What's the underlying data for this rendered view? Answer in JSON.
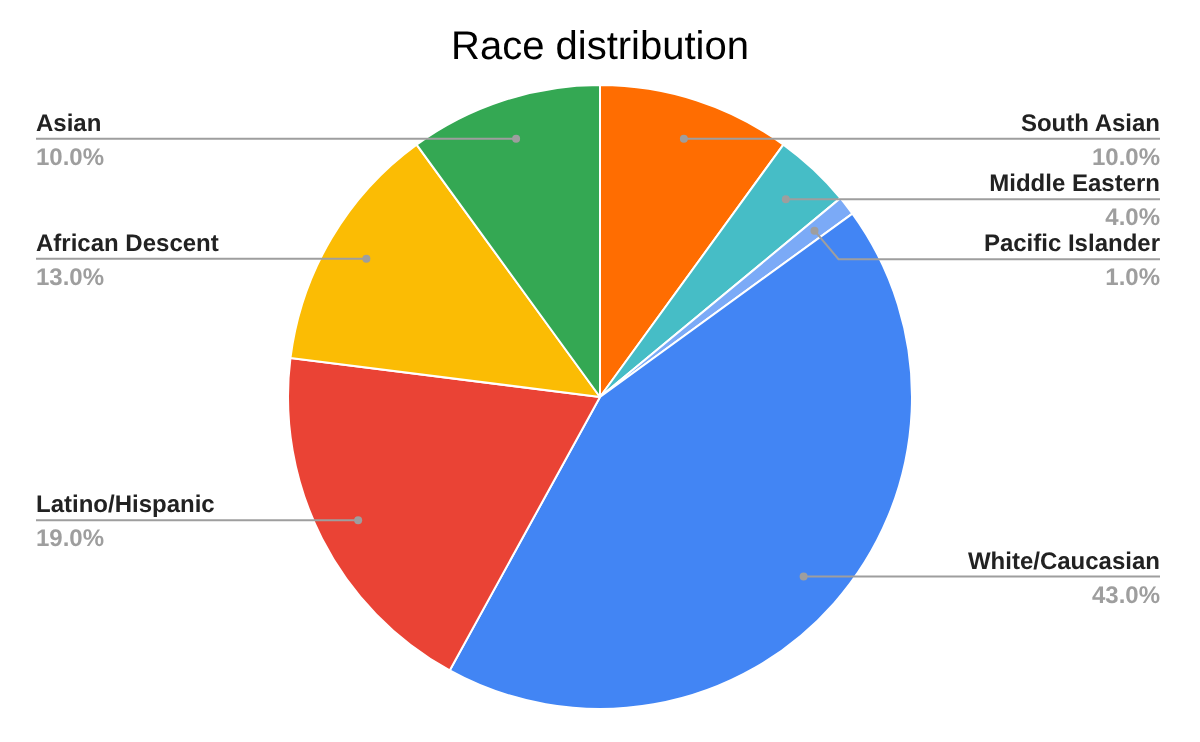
{
  "chart_data": {
    "type": "pie",
    "title": "Race distribution",
    "categories": [
      "South Asian",
      "Middle Eastern",
      "Pacific Islander",
      "White/Caucasian",
      "Latino/Hispanic",
      "African Descent",
      "Asian"
    ],
    "values": [
      10,
      4,
      1,
      43,
      19,
      13,
      10
    ],
    "colors": [
      "#ff6d01",
      "#46bdc6",
      "#7baaf7",
      "#4285f4",
      "#ea4335",
      "#fbbc04",
      "#34a853"
    ],
    "value_labels": [
      "10.0%",
      "4.0%",
      "1.0%",
      "43.0%",
      "19.0%",
      "13.0%",
      "10.0%"
    ]
  }
}
